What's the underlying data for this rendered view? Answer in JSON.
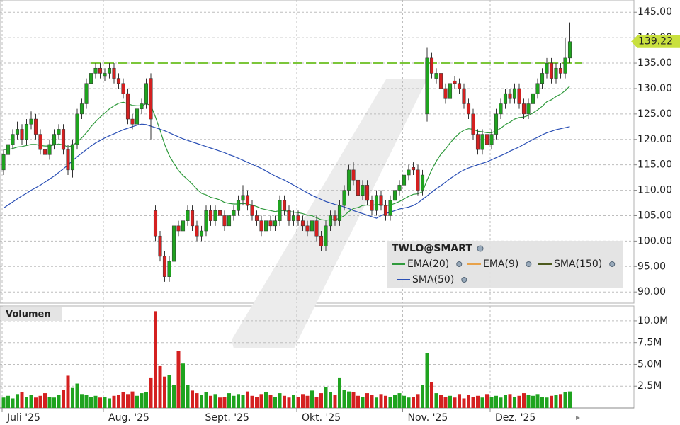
{
  "chart_data": {
    "type": "candlestick",
    "title": "TWLO@SMART",
    "categories": [
      "Juli '25",
      null,
      null,
      null,
      null,
      null,
      null,
      null,
      null,
      null,
      null,
      null,
      null,
      null,
      null,
      null,
      null,
      null,
      null,
      null,
      null,
      null,
      "Aug. '25",
      null,
      null,
      null,
      null,
      null,
      null,
      null,
      null,
      null,
      null,
      null,
      null,
      null,
      null,
      null,
      null,
      null,
      null,
      null,
      null,
      "Sept. '25",
      null,
      null,
      null,
      null,
      null,
      null,
      null,
      null,
      null,
      null,
      null,
      null,
      null,
      null,
      null,
      null,
      null,
      null,
      null,
      null,
      "Okt. '25",
      null,
      null,
      null,
      null,
      null,
      null,
      null,
      null,
      null,
      null,
      null,
      null,
      null,
      null,
      null,
      null,
      null,
      null,
      null,
      null,
      null,
      null,
      "Nov. '25",
      null,
      null,
      null,
      null,
      null,
      null,
      null,
      null,
      null,
      null,
      null,
      null,
      null,
      null,
      null,
      null,
      null,
      null,
      "Dez. '25",
      null,
      null,
      null,
      null,
      null,
      null,
      null,
      null,
      null,
      null,
      null,
      null,
      null,
      null,
      null,
      null,
      null
    ],
    "open": [
      114,
      117,
      119,
      121,
      122,
      120,
      123,
      124,
      121,
      118,
      117,
      119,
      121,
      122,
      118,
      114,
      119,
      125,
      127,
      131,
      133,
      134,
      132.5,
      133,
      134,
      132,
      131,
      129,
      124,
      123,
      126,
      127,
      132,
      106,
      101,
      97,
      93,
      96,
      103,
      102,
      104,
      106,
      103,
      101,
      102,
      106,
      104,
      106,
      105,
      103,
      105,
      106,
      108,
      109,
      107,
      105,
      104,
      102,
      104,
      103,
      104,
      108,
      106,
      104,
      105,
      104,
      103,
      102,
      104,
      101,
      99,
      103,
      105,
      104,
      107,
      110,
      114,
      112,
      109,
      111,
      108,
      106,
      109,
      107,
      105,
      108,
      110,
      111,
      113,
      114.5,
      114,
      110,
      125,
      136,
      132,
      133,
      130,
      128,
      131.5,
      131,
      130,
      127,
      125,
      121,
      118,
      121,
      119,
      121,
      125,
      127,
      129,
      128,
      130,
      127,
      125,
      127,
      129,
      131,
      133,
      135,
      132,
      134,
      133,
      136
    ],
    "high": [
      118,
      120,
      122,
      123.5,
      123,
      124,
      125.5,
      125,
      122,
      119,
      120,
      122,
      123,
      123,
      119,
      120,
      126,
      128,
      132,
      134,
      135,
      135,
      134,
      135,
      135,
      133,
      132,
      130,
      125,
      127,
      128,
      132,
      133,
      107,
      102,
      98,
      97,
      104,
      104,
      105,
      107,
      107,
      104,
      103,
      107,
      107,
      107,
      107,
      106,
      106,
      107,
      109,
      111,
      110,
      108,
      106,
      105,
      105,
      105,
      105,
      109,
      109,
      107,
      106,
      106,
      105,
      104,
      105,
      105,
      102,
      104,
      106,
      106,
      108,
      111,
      115,
      115.5,
      113,
      112,
      112,
      109,
      110,
      110,
      108,
      109,
      111,
      112,
      114,
      115,
      115.5,
      115,
      114,
      138,
      137,
      134,
      134,
      131,
      132,
      132.5,
      132,
      131,
      128,
      126,
      122,
      122,
      122,
      122,
      126,
      128,
      130,
      130,
      131,
      131,
      128,
      128,
      130,
      132,
      134,
      136,
      136,
      135,
      135,
      140,
      143
    ],
    "low": [
      113,
      116,
      118,
      120,
      119,
      119,
      122,
      120,
      117,
      116,
      116,
      118,
      120,
      117,
      113,
      112.5,
      118,
      124,
      126,
      130,
      132,
      132,
      131.5,
      132,
      131,
      130,
      128,
      123,
      122,
      122,
      125,
      126,
      120,
      100,
      96,
      92,
      92,
      95,
      101,
      101,
      103,
      102,
      100,
      100,
      101,
      103,
      103,
      104,
      102,
      102,
      104,
      105,
      107,
      106,
      104,
      103,
      101,
      101,
      102,
      102,
      103,
      105,
      103,
      103,
      103,
      102,
      101,
      101,
      100,
      98,
      98,
      102,
      103,
      103,
      106,
      109,
      111,
      108,
      108,
      107,
      105,
      105,
      106,
      104,
      104,
      107,
      109,
      110,
      112,
      113,
      109,
      109,
      123.5,
      132,
      131,
      129,
      127,
      127,
      130,
      129,
      126,
      124,
      120,
      117,
      117,
      118,
      118,
      120,
      124,
      126,
      127,
      127,
      126,
      124,
      124,
      126,
      128,
      130,
      132,
      131,
      131,
      132,
      132,
      135
    ],
    "close": [
      117,
      119,
      121,
      122,
      120,
      123,
      124,
      121,
      118,
      117,
      119,
      121,
      122,
      118,
      114,
      119,
      125,
      127,
      131,
      133,
      134,
      133,
      133,
      134,
      132,
      131,
      129,
      124,
      123,
      126,
      127,
      131,
      124,
      101,
      97,
      93,
      96,
      103,
      102,
      104,
      106,
      103,
      101,
      102,
      106,
      104,
      106,
      105,
      103,
      105,
      106,
      108,
      109,
      107,
      105,
      104,
      102,
      104,
      103,
      104,
      108,
      106,
      104,
      105,
      104,
      103,
      102,
      104,
      101,
      99,
      103,
      105,
      104,
      107,
      110,
      114,
      112,
      109,
      111,
      108,
      106,
      109,
      107,
      105,
      108,
      110,
      111,
      113,
      114,
      114,
      110,
      113,
      136,
      133,
      133,
      130,
      128,
      131,
      131,
      130,
      127,
      125,
      121,
      118,
      121,
      119,
      121,
      125,
      127,
      129,
      128,
      130,
      127,
      125,
      127,
      129,
      131,
      133,
      135,
      132,
      134,
      133,
      136,
      139.22
    ],
    "up_color": "#1fa31f",
    "down_color": "#d42020",
    "ylim": [
      87.8,
      147.4
    ],
    "yticks": [
      {
        "value": 90,
        "label": "90.00"
      },
      {
        "value": 95,
        "label": "95.00"
      },
      {
        "value": 100,
        "label": "100.00"
      },
      {
        "value": 105,
        "label": "105.00"
      },
      {
        "value": 110,
        "label": "110.00"
      },
      {
        "value": 115,
        "label": "115.00"
      },
      {
        "value": 120,
        "label": "120.00"
      },
      {
        "value": 125,
        "label": "125.00"
      },
      {
        "value": 130,
        "label": "130.00"
      },
      {
        "value": 135,
        "label": "135.00"
      },
      {
        "value": 140,
        "label": "140.00"
      },
      {
        "value": 145,
        "label": "145.00"
      }
    ],
    "grid": true,
    "hline": {
      "value": 135,
      "color": "#7cc63a"
    },
    "last_price_color": "#c9e03e",
    "series": [
      {
        "name": "EMA(20)",
        "color": "#2f9a3c",
        "values": [
          118,
          118,
          118.2,
          118.5,
          118.6,
          118.8,
          119,
          119,
          118.8,
          118.7,
          118.7,
          118.9,
          119.1,
          118.9,
          118.5,
          118.8,
          119.5,
          120.3,
          121.3,
          122.5,
          123.5,
          124.4,
          125.2,
          126,
          126.6,
          127.1,
          127.3,
          127,
          126.7,
          126.6,
          126.6,
          127,
          126.7,
          124.4,
          121.8,
          119,
          116.8,
          115.3,
          113.9,
          112.9,
          112.1,
          111.2,
          110.2,
          109.4,
          109.1,
          108.6,
          108.4,
          108.1,
          107.6,
          107.4,
          107.3,
          107.3,
          107.4,
          107.3,
          107.1,
          106.8,
          106.4,
          106.2,
          106,
          105.8,
          106,
          106,
          105.8,
          105.7,
          105.6,
          105.4,
          105.1,
          105,
          104.6,
          104.2,
          104.1,
          104.2,
          104.2,
          104.5,
          105,
          105.8,
          106.4,
          106.6,
          107,
          107.1,
          107,
          107.2,
          107.2,
          107,
          107.1,
          107.4,
          107.8,
          108.3,
          108.8,
          109.2,
          109.3,
          109.7,
          112,
          114,
          115.7,
          117.1,
          118.1,
          119.3,
          120.3,
          121.2,
          121.8,
          122.1,
          122,
          121.6,
          121.5,
          121.3,
          121.3,
          121.7,
          122.2,
          122.9,
          123.4,
          124,
          124.3,
          124.4,
          124.7,
          125.2,
          125.8,
          126.5,
          127.4,
          127.8,
          128.4,
          128.9,
          129.6,
          130.5
        ]
      },
      {
        "name": "EMA(9)",
        "color": "#e8a24a"
      },
      {
        "name": "SMA(150)",
        "color": "#4d5a1e"
      },
      {
        "name": "SMA(50)",
        "color": "#2a4fb5",
        "values": [
          106.5,
          107.1,
          107.7,
          108.3,
          108.9,
          109.4,
          110,
          110.5,
          111,
          111.6,
          112.2,
          112.8,
          113.5,
          114.2,
          115,
          115.8,
          116.6,
          117.3,
          118,
          118.7,
          119.3,
          119.8,
          120.3,
          120.7,
          121.1,
          121.5,
          121.9,
          122.2,
          122.5,
          122.8,
          123,
          122.9,
          122.6,
          122.3,
          122,
          121.7,
          121.3,
          120.9,
          120.5,
          120.1,
          119.8,
          119.5,
          119.2,
          118.9,
          118.6,
          118.3,
          118,
          117.7,
          117.4,
          117,
          116.7,
          116.3,
          115.9,
          115.5,
          115.1,
          114.7,
          114.3,
          113.8,
          113.3,
          112.8,
          112.4,
          112,
          111.5,
          111,
          110.5,
          110,
          109.5,
          109,
          108.6,
          108.2,
          107.8,
          107.5,
          107.2,
          107,
          106.7,
          106.4,
          106,
          105.7,
          105.4,
          105.1,
          104.8,
          104.5,
          105,
          105.4,
          105.7,
          106,
          106.3,
          106.5,
          106.7,
          107,
          107.5,
          108.2,
          108.9,
          109.6,
          110.3,
          110.9,
          111.6,
          112.3,
          112.9,
          113.5,
          114,
          114.4,
          114.7,
          115,
          115.3,
          115.6,
          116,
          116.4,
          116.8,
          117.2,
          117.7,
          118.1,
          118.5,
          119,
          119.5,
          120,
          120.4,
          120.9,
          121.3,
          121.6,
          121.9,
          122.1,
          122.3,
          122.5
        ]
      }
    ],
    "volume": {
      "title": "Volumen",
      "values": [
        1.2,
        1.4,
        1.1,
        1.6,
        1.8,
        1.3,
        1.5,
        1.2,
        1.4,
        1.7,
        1.3,
        1.2,
        1.5,
        2.1,
        3.7,
        2.3,
        2.8,
        1.6,
        1.5,
        1.3,
        1.4,
        1.2,
        1.3,
        1.1,
        1.4,
        1.5,
        1.8,
        1.6,
        1.9,
        1.4,
        1.7,
        1.8,
        3.5,
        11.1,
        4.8,
        3.6,
        3.8,
        2.6,
        6.5,
        5.1,
        2.6,
        2.0,
        1.7,
        1.5,
        1.8,
        1.4,
        1.6,
        1.2,
        1.3,
        1.7,
        1.4,
        1.6,
        1.5,
        1.9,
        1.4,
        1.3,
        1.6,
        1.8,
        1.5,
        1.3,
        1.7,
        1.4,
        1.2,
        1.5,
        1.3,
        1.6,
        1.4,
        2.0,
        1.3,
        1.7,
        2.4,
        1.8,
        1.5,
        3.5,
        2.1,
        1.9,
        1.8,
        1.4,
        1.3,
        1.7,
        1.5,
        1.2,
        1.6,
        1.4,
        1.3,
        1.5,
        1.7,
        1.4,
        1.2,
        1.3,
        1.6,
        2.6,
        6.3,
        3.0,
        1.7,
        1.5,
        1.3,
        1.4,
        1.2,
        1.6,
        1.1,
        1.5,
        1.3,
        1.4,
        1.2,
        1.6,
        1.3,
        1.4,
        1.2,
        1.5,
        1.6,
        1.3,
        1.4,
        1.7,
        1.5,
        1.4,
        1.6,
        1.3,
        1.2,
        1.4,
        1.5,
        1.6,
        1.8,
        1.9
      ],
      "ylim": [
        0,
        11.7
      ],
      "yticks": [
        {
          "value": 2.5,
          "label": "2.5M"
        },
        {
          "value": 5,
          "label": "5.0M"
        },
        {
          "value": 7.5,
          "label": "7.5M"
        },
        {
          "value": 10,
          "label": "10.0M"
        }
      ]
    }
  }
}
